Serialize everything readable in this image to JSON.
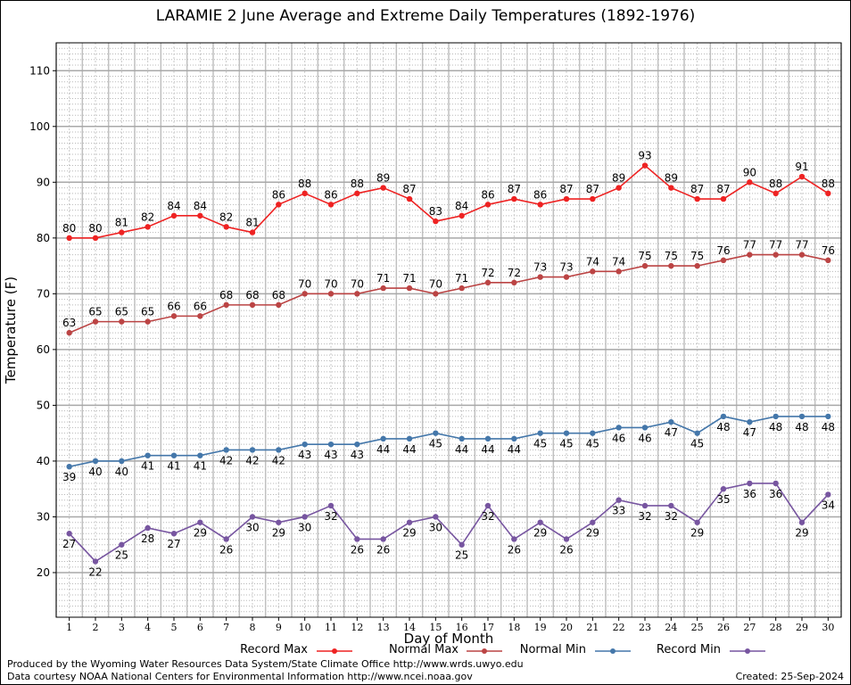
{
  "title": "LARAMIE 2 June Average and Extreme Daily Temperatures (1892-1976)",
  "footer": {
    "produced": "Produced by the Wyoming Water Resources Data System/State Climate Office http://www.wrds.uwyo.edu",
    "courtesy": "Data courtesy NOAA National Centers for Environmental Information http://www.ncei.noaa.gov",
    "created": "Created: 25-Sep-2024"
  },
  "chart_data": {
    "type": "line",
    "title": "LARAMIE 2 June Average and Extreme Daily Temperatures (1892-1976)",
    "xlabel": "Day of Month",
    "ylabel": "Temperature (F)",
    "xlim": [
      0.5,
      30.5
    ],
    "ylim": [
      12,
      115
    ],
    "yticks": [
      20,
      30,
      40,
      50,
      60,
      70,
      80,
      90,
      100,
      110
    ],
    "x": [
      1,
      2,
      3,
      4,
      5,
      6,
      7,
      8,
      9,
      10,
      11,
      12,
      13,
      14,
      15,
      16,
      17,
      18,
      19,
      20,
      21,
      22,
      23,
      24,
      25,
      26,
      27,
      28,
      29,
      30
    ],
    "grid": true,
    "legend_position": "bottom",
    "series": [
      {
        "name": "Record Max",
        "color": "#ee2222",
        "label_position": "above",
        "values": [
          80,
          80,
          81,
          82,
          84,
          84,
          82,
          81,
          86,
          88,
          86,
          88,
          89,
          87,
          83,
          84,
          86,
          87,
          86,
          87,
          87,
          89,
          93,
          89,
          87,
          87,
          90,
          88,
          91,
          88
        ]
      },
      {
        "name": "Normal Max",
        "color": "#bb4444",
        "label_position": "above",
        "values": [
          63,
          65,
          65,
          65,
          66,
          66,
          68,
          68,
          68,
          70,
          70,
          70,
          71,
          71,
          70,
          71,
          72,
          72,
          73,
          73,
          74,
          74,
          75,
          75,
          75,
          76,
          77,
          77,
          77,
          76
        ]
      },
      {
        "name": "Normal Min",
        "color": "#4477aa",
        "label_position": "below",
        "values": [
          39,
          40,
          40,
          41,
          41,
          41,
          42,
          42,
          42,
          43,
          43,
          43,
          44,
          44,
          45,
          44,
          44,
          44,
          45,
          45,
          45,
          46,
          46,
          47,
          45,
          48,
          47,
          48,
          48,
          48
        ]
      },
      {
        "name": "Record Min",
        "color": "#7755a0",
        "label_position": "below",
        "values": [
          27,
          22,
          25,
          28,
          27,
          29,
          26,
          30,
          29,
          30,
          32,
          26,
          26,
          29,
          30,
          25,
          32,
          26,
          29,
          26,
          29,
          33,
          32,
          32,
          29,
          35,
          36,
          36,
          29,
          34
        ]
      }
    ]
  }
}
